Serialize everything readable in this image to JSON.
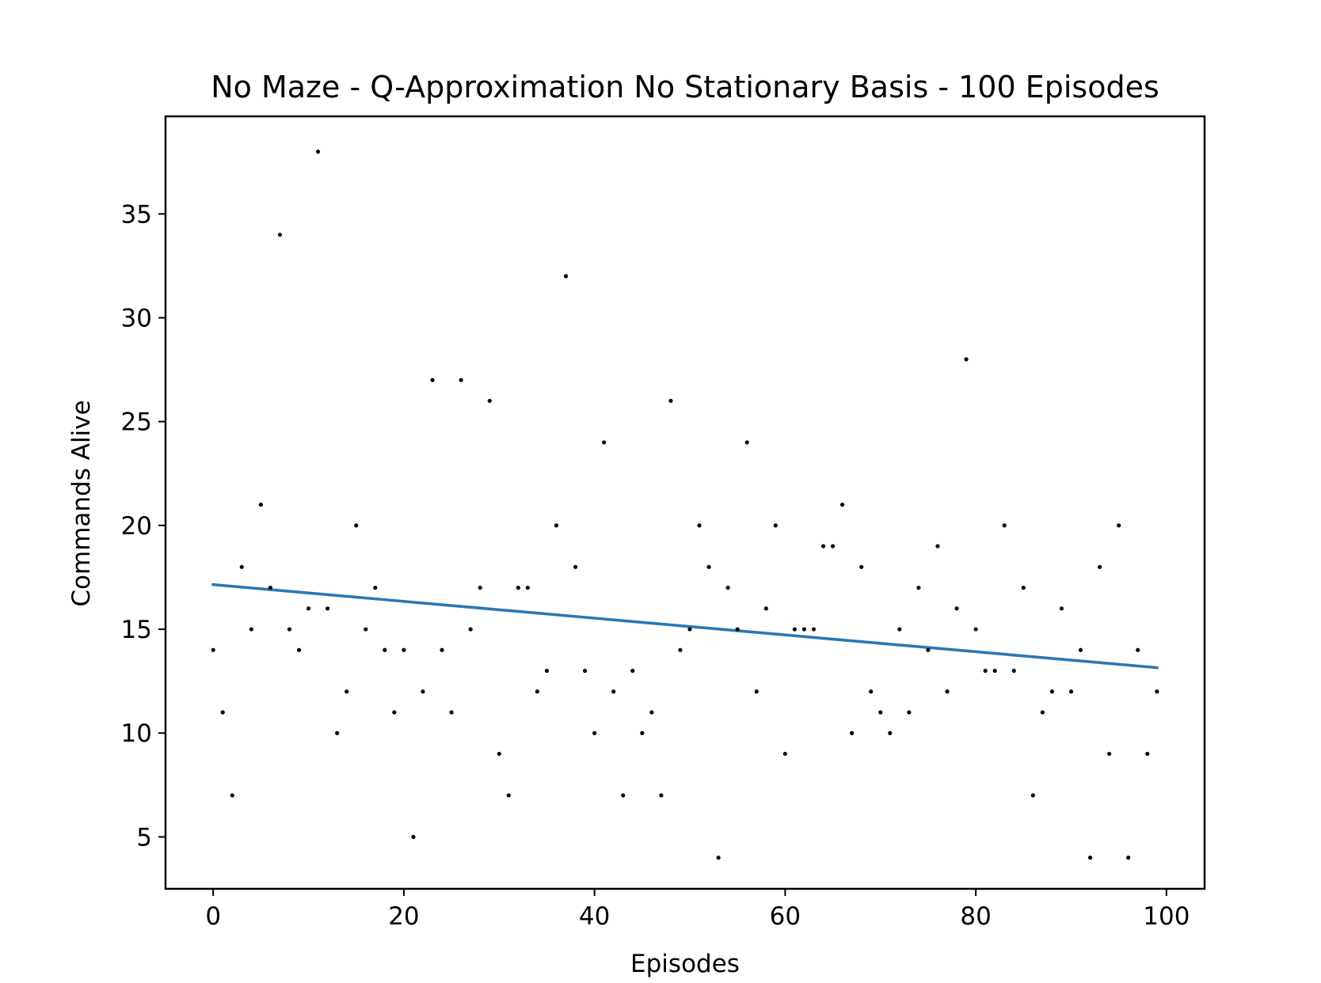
{
  "chart_data": {
    "type": "scatter",
    "title": "No Maze - Q-Approximation No Stationary Basis - 100 Episodes",
    "xlabel": "Episodes",
    "ylabel": "Commands Alive",
    "xlim": [
      -5,
      104
    ],
    "ylim": [
      2.5,
      39.7
    ],
    "xticks": [
      0,
      20,
      40,
      60,
      80,
      100
    ],
    "yticks": [
      5,
      10,
      15,
      20,
      25,
      30,
      35
    ],
    "grid": false,
    "point_color": "#000000",
    "trend_color": "#2878b5",
    "series": [
      {
        "type": "scatter",
        "x": [
          0,
          1,
          2,
          3,
          4,
          5,
          6,
          7,
          8,
          9,
          10,
          11,
          12,
          13,
          14,
          15,
          16,
          17,
          18,
          19,
          20,
          21,
          22,
          23,
          24,
          25,
          26,
          27,
          28,
          29,
          30,
          31,
          32,
          33,
          34,
          35,
          36,
          37,
          38,
          39,
          40,
          41,
          42,
          43,
          44,
          45,
          46,
          47,
          48,
          49,
          50,
          51,
          52,
          53,
          54,
          55,
          56,
          57,
          58,
          59,
          60,
          61,
          62,
          63,
          64,
          65,
          66,
          67,
          68,
          69,
          70,
          71,
          72,
          73,
          74,
          75,
          76,
          77,
          78,
          79,
          80,
          81,
          82,
          83,
          84,
          85,
          86,
          87,
          88,
          89,
          90,
          91,
          92,
          93,
          94,
          95,
          96,
          97,
          98,
          99
        ],
        "y": [
          14,
          11,
          7,
          18,
          15,
          21,
          17,
          34,
          15,
          14,
          16,
          38,
          16,
          10,
          12,
          20,
          15,
          17,
          14,
          11,
          14,
          5,
          12,
          27,
          14,
          11,
          27,
          15,
          17,
          26,
          9,
          7,
          17,
          17,
          12,
          13,
          20,
          32,
          18,
          13,
          10,
          24,
          12,
          7,
          13,
          10,
          11,
          7,
          26,
          14,
          15,
          20,
          18,
          4,
          17,
          15,
          24,
          12,
          16,
          20,
          9,
          15,
          15,
          15,
          19,
          19,
          21,
          10,
          18,
          12,
          11,
          10,
          15,
          11,
          17,
          14,
          19,
          12,
          16,
          28,
          15,
          13,
          13,
          20,
          13,
          17,
          7,
          11,
          12,
          16,
          12,
          14,
          4,
          18,
          9,
          20,
          4,
          14,
          9,
          12
        ]
      },
      {
        "type": "line",
        "x": [
          0,
          99
        ],
        "y": [
          17.15,
          13.15
        ]
      }
    ]
  }
}
